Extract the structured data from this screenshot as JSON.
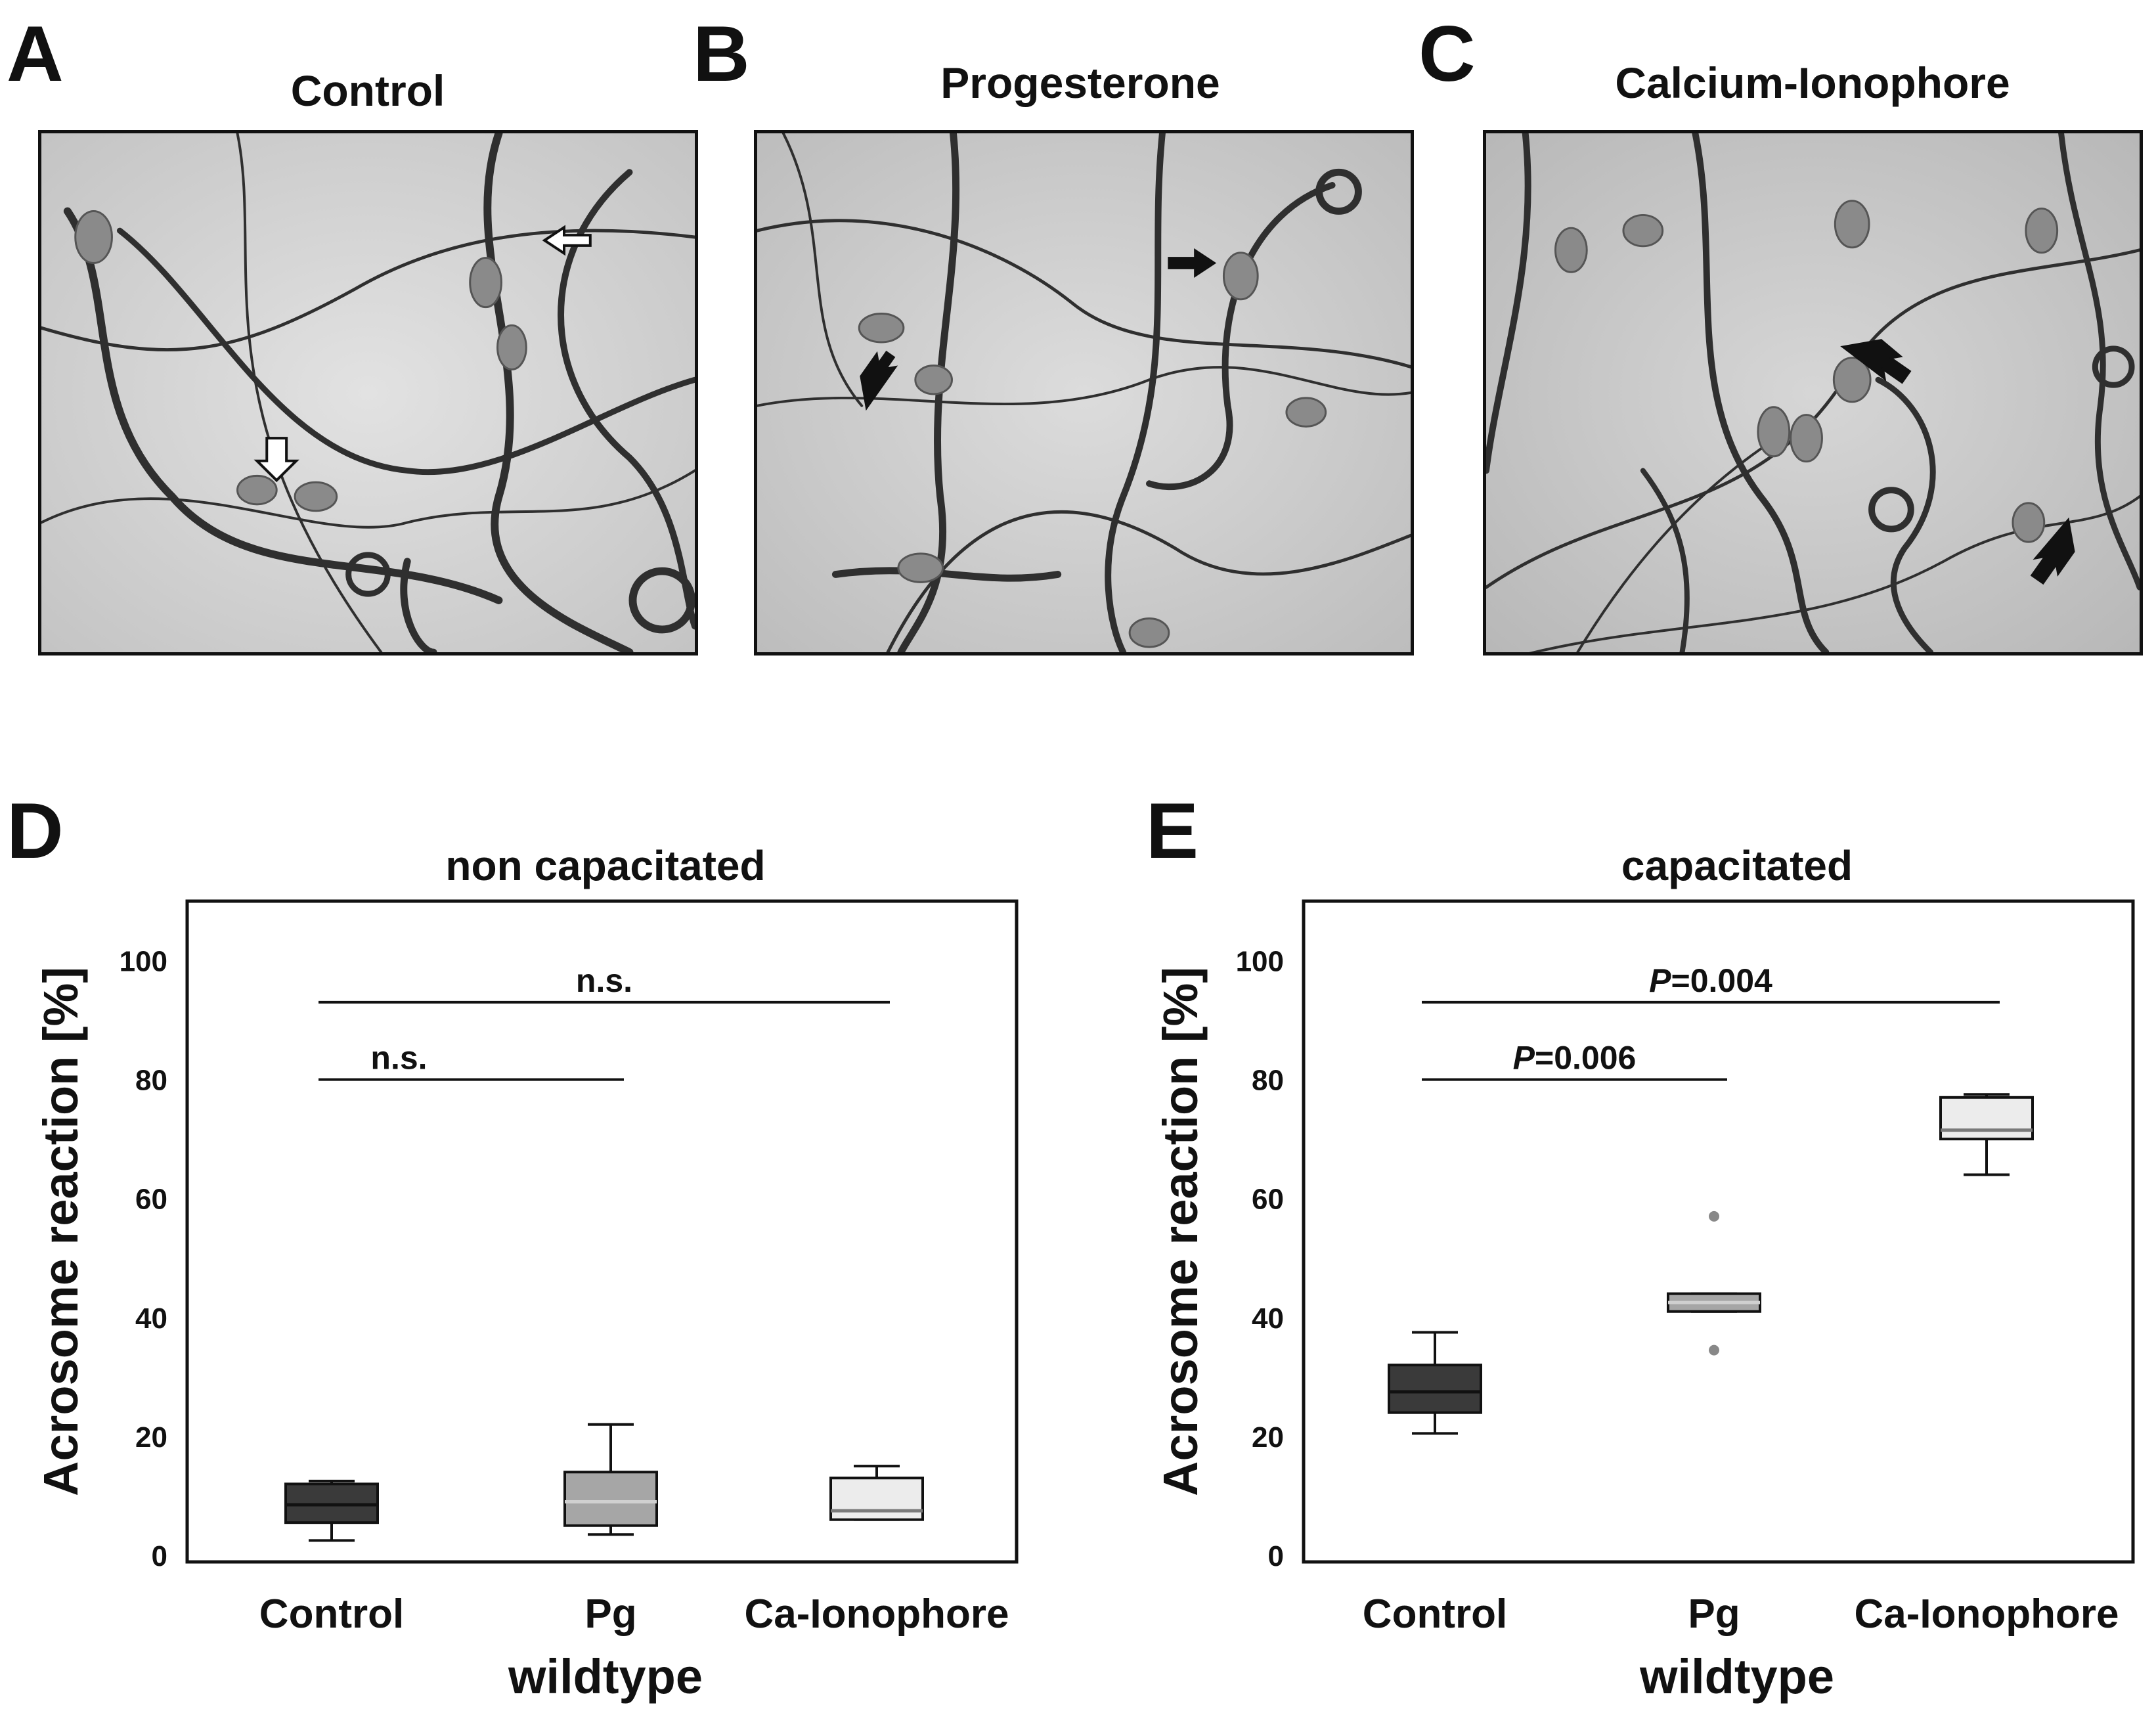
{
  "panels_top": [
    {
      "letter": "A",
      "title": "Control"
    },
    {
      "letter": "B",
      "title": "Progesterone"
    },
    {
      "letter": "C",
      "title": "Calcium-Ionophore"
    }
  ],
  "panels_bottom": [
    {
      "letter": "D"
    },
    {
      "letter": "E"
    }
  ],
  "colors": {
    "control_box": "#3a3a3a",
    "pg_box": "#a6a6a6",
    "ionophore_box": "#ececec"
  },
  "chart_data": [
    {
      "type": "box",
      "title": "non capacitated",
      "ylabel": "Acrosome reaction [%]",
      "xlabel": "wildtype",
      "categories": [
        "Control",
        "Pg",
        "Ca-Ionophore"
      ],
      "yticks": [
        "0",
        "20",
        "40",
        "60",
        "80",
        "100"
      ],
      "ylim": [
        0,
        110
      ],
      "boxes": [
        {
          "min": 2.5,
          "q1": 5.5,
          "median": 8.5,
          "q3": 12,
          "max": 12.5,
          "outliers": []
        },
        {
          "min": 3.5,
          "q1": 5,
          "median": 9,
          "q3": 14,
          "max": 22,
          "outliers": []
        },
        {
          "min": 6,
          "q1": 6,
          "median": 7.5,
          "q3": 13,
          "max": 15,
          "outliers": []
        }
      ],
      "annotations": [
        {
          "text": "n.s.",
          "from": 0,
          "to": 1,
          "y": 80
        },
        {
          "text": "n.s.",
          "from": 0,
          "to": 2,
          "y": 93
        }
      ]
    },
    {
      "type": "box",
      "title": "capacitated",
      "ylabel": "Acrosome reaction [%]",
      "xlabel": "wildtype",
      "categories": [
        "Control",
        "Pg",
        "Ca-Ionophore"
      ],
      "yticks": [
        "0",
        "20",
        "40",
        "60",
        "80",
        "100"
      ],
      "ylim": [
        0,
        110
      ],
      "boxes": [
        {
          "min": 20.5,
          "q1": 24,
          "median": 27.5,
          "q3": 32,
          "max": 37.5,
          "outliers": []
        },
        {
          "min": 41,
          "q1": 41,
          "median": 42.5,
          "q3": 44,
          "max": 44,
          "outliers": [
            57,
            34.5
          ]
        },
        {
          "min": 64,
          "q1": 70,
          "median": 71.5,
          "q3": 77,
          "max": 77.5,
          "outliers": []
        }
      ],
      "annotations": [
        {
          "text": "P=0.006",
          "italic_prefix": "P",
          "rest": "=0.006",
          "from": 0,
          "to": 1,
          "y": 80
        },
        {
          "text": "P=0.004",
          "italic_prefix": "P",
          "rest": "=0.004",
          "from": 0,
          "to": 2,
          "y": 93
        }
      ]
    }
  ]
}
